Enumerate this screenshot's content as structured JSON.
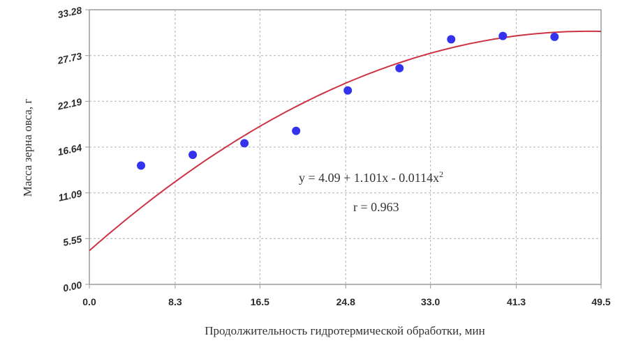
{
  "chart_data": {
    "type": "scatter",
    "x_ticks": [
      "0.0",
      "8.3",
      "16.5",
      "24.8",
      "33.0",
      "41.3",
      "49.5"
    ],
    "y_ticks": [
      "0.00",
      "5.55",
      "11.09",
      "16.64",
      "22.19",
      "27.73",
      "33.28"
    ],
    "xlim": [
      0,
      49.5
    ],
    "ylim": [
      0,
      33.28
    ],
    "xlabel": "Продолжительность гидротермической обработки, мин",
    "ylabel": "Масса зерна овса, г",
    "grid": true,
    "points": {
      "x": [
        5,
        10,
        15,
        20,
        25,
        30,
        35,
        40,
        45
      ],
      "y": [
        14.4,
        15.7,
        17.1,
        18.6,
        23.5,
        26.2,
        29.7,
        30.1,
        30.0
      ]
    },
    "fit": {
      "intercept": 4.09,
      "linear": 1.101,
      "quadratic": -0.0114,
      "x_range": [
        0,
        49.5
      ]
    },
    "equation_prefix": "y = 4.09 + 1.101x - 0.0114x",
    "equation_power": "2",
    "r_text": "r = 0.963",
    "colors": {
      "points": "#3333ee",
      "fit_line": "#cc3344",
      "grid": "#b0b0b0",
      "frame": "#9a9a9a"
    }
  }
}
